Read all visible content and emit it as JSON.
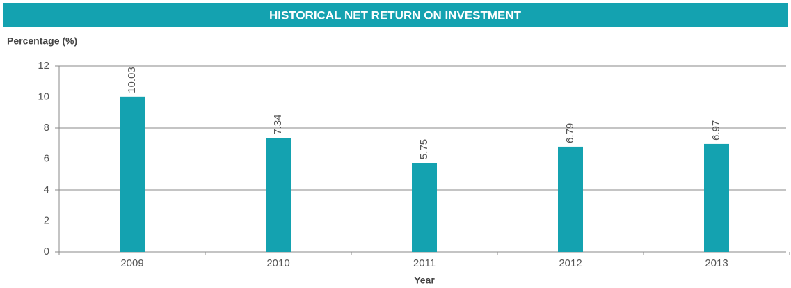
{
  "chart_data": {
    "type": "bar",
    "title": "HISTORICAL NET RETURN ON INVESTMENT",
    "y_label": "Percentage (%)",
    "x_label": "Year",
    "categories": [
      "2009",
      "2010",
      "2011",
      "2012",
      "2013"
    ],
    "values": [
      10.03,
      7.34,
      5.75,
      6.79,
      6.97
    ],
    "color": "#14a2b0",
    "ylim": [
      0,
      12
    ],
    "yticks": [
      0,
      2,
      4,
      6,
      8,
      10,
      12
    ],
    "grid": true
  }
}
